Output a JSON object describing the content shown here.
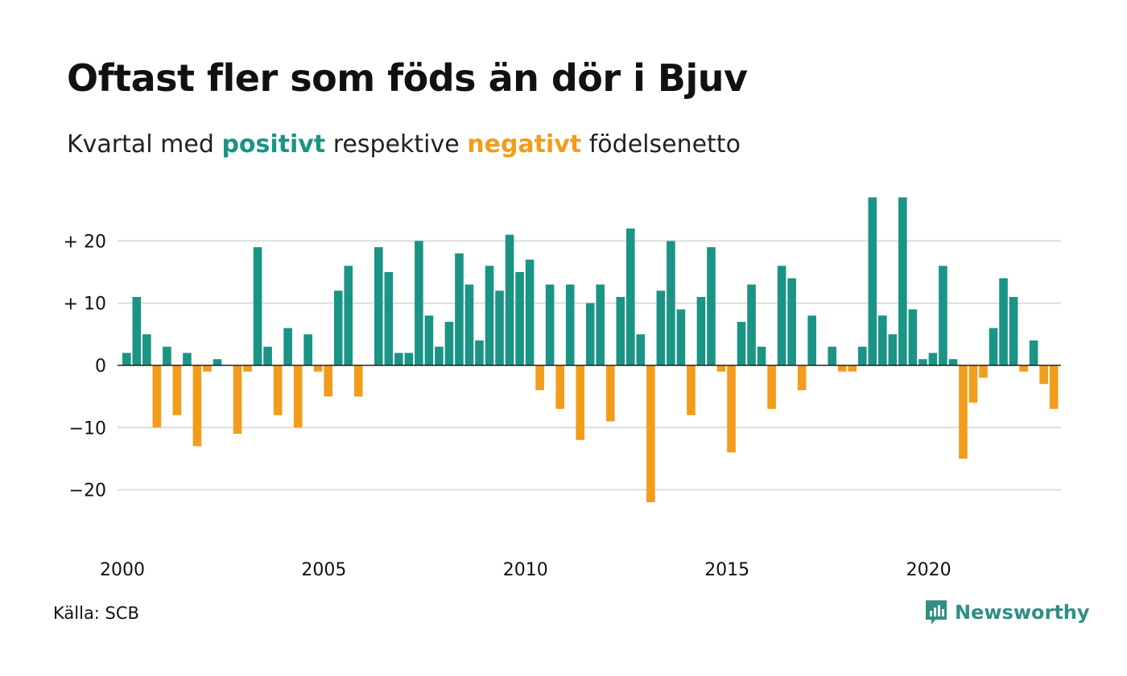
{
  "header": {
    "title": "Oftast fler som föds än dör i Bjuv",
    "subtitle_pre": "Kvartal med",
    "subtitle_pos": "positivt",
    "subtitle_mid": "respektive",
    "subtitle_neg": "negativt",
    "subtitle_post": "födelsenetto"
  },
  "footer": {
    "source": "Källa: SCB",
    "brand": "Newsworthy",
    "brand_icon": "chart-bubble-icon"
  },
  "colors": {
    "positive": "#1a9485",
    "negative": "#f39c1b",
    "grid": "#dddddd"
  },
  "chart_data": {
    "type": "bar",
    "start_year": 2000,
    "quarters_per_year": 4,
    "ylim": [
      -22,
      27
    ],
    "y_ticks": [
      20,
      10,
      0,
      -10,
      -20
    ],
    "y_tick_labels": [
      "+ 20",
      "+ 10",
      "0",
      "−10",
      "−20"
    ],
    "x_ticks": [
      2000,
      2005,
      2010,
      2015,
      2020
    ],
    "x_tick_labels": [
      "2000",
      "2005",
      "2010",
      "2015",
      "2020"
    ],
    "grid": true,
    "values": [
      2,
      11,
      5,
      -10,
      3,
      -8,
      2,
      -13,
      -1,
      1,
      0,
      -11,
      -1,
      19,
      3,
      -8,
      6,
      -10,
      5,
      -1,
      -5,
      12,
      16,
      -5,
      0,
      19,
      15,
      2,
      2,
      20,
      8,
      3,
      7,
      18,
      13,
      4,
      16,
      12,
      21,
      15,
      17,
      -4,
      13,
      -7,
      13,
      -12,
      10,
      13,
      -9,
      11,
      22,
      5,
      -22,
      12,
      20,
      9,
      -8,
      11,
      19,
      -1,
      -14,
      7,
      13,
      3,
      -7,
      16,
      14,
      -4,
      8,
      0,
      3,
      -1,
      -1,
      3,
      27,
      8,
      5,
      27,
      9,
      1,
      2,
      16,
      1,
      -15,
      -6,
      -2,
      6,
      14,
      11,
      -1,
      4,
      -3,
      -7
    ]
  }
}
